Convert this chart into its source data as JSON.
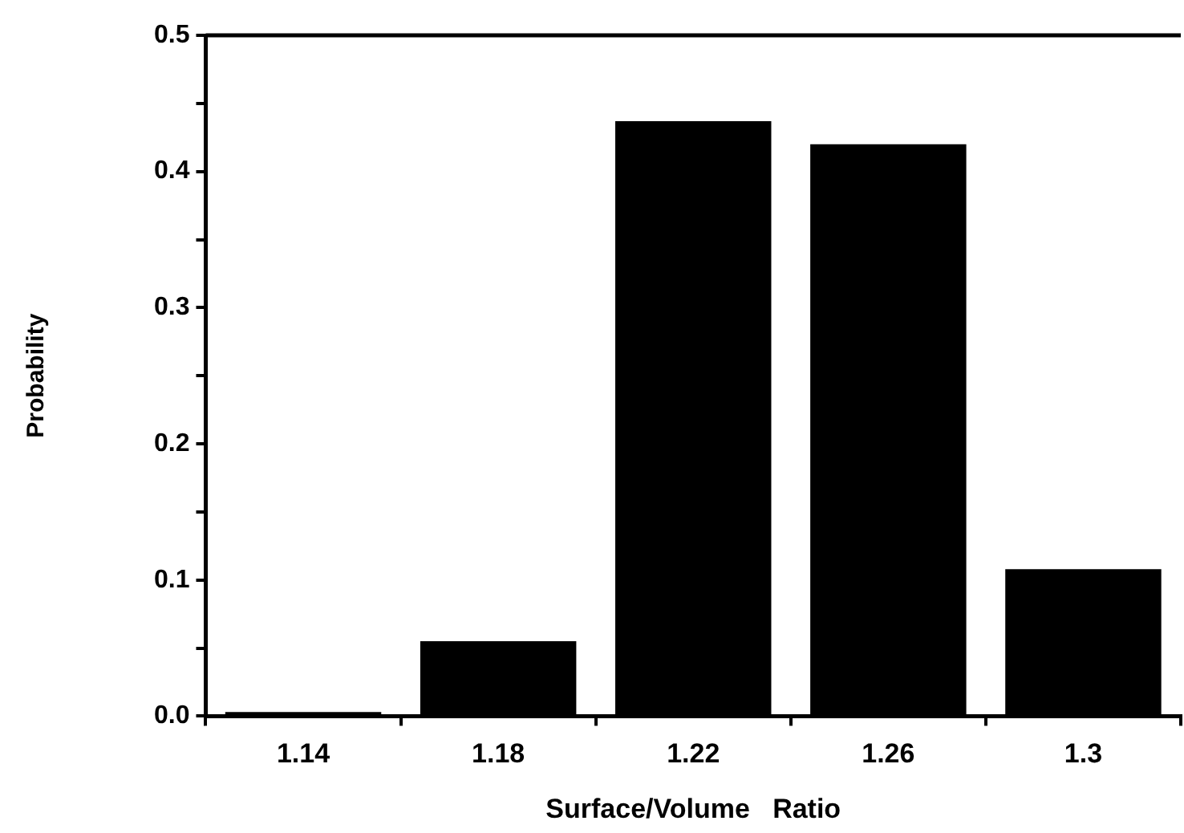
{
  "chart_data": {
    "type": "bar",
    "xlabel": "Surface/Volume   Ratio",
    "ylabel": "Probability",
    "categories": [
      "1.14",
      "1.18",
      "1.22",
      "1.26",
      "1.3"
    ],
    "values": [
      0.003,
      0.055,
      0.437,
      0.42,
      0.108
    ],
    "color": "#000000",
    "ylim": [
      0,
      0.5
    ],
    "yticks": [
      {
        "value": 0,
        "label": "0.0"
      },
      {
        "value": 0.05,
        "label": null
      },
      {
        "value": 0.1,
        "label": "0.1"
      },
      {
        "value": 0.15,
        "label": null
      },
      {
        "value": 0.2,
        "label": "0.2"
      },
      {
        "value": 0.25,
        "label": null
      },
      {
        "value": 0.3,
        "label": "0.3"
      },
      {
        "value": 0.35,
        "label": null
      },
      {
        "value": 0.4,
        "label": "0.4"
      },
      {
        "value": 0.45,
        "label": null
      },
      {
        "value": 0.5,
        "label": "0.5"
      }
    ],
    "grid": false,
    "legend": false
  }
}
